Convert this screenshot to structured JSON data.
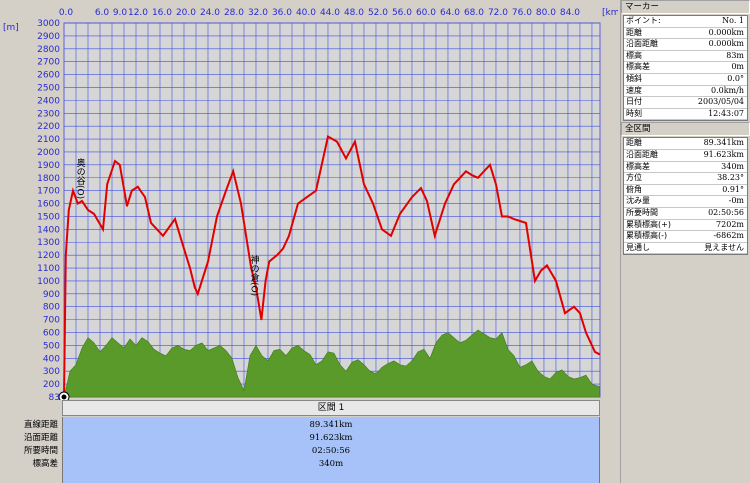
{
  "chart": {
    "y_unit": "[m]",
    "x_unit": "[km]",
    "y_ticks": [
      "3000",
      "2900",
      "2800",
      "2700",
      "2600",
      "2500",
      "2400",
      "2300",
      "2200",
      "2100",
      "2000",
      "1900",
      "1800",
      "1700",
      "1600",
      "1500",
      "1400",
      "1300",
      "1200",
      "1100",
      "1000",
      "900",
      "800",
      "700",
      "600",
      "500",
      "400",
      "300",
      "200",
      "83"
    ],
    "x_ticks": [
      "0.0",
      "6.0",
      "9.0",
      "12.0",
      "16.0",
      "20.0",
      "24.0",
      "28.0",
      "32.0",
      "36.0",
      "40.0",
      "44.0",
      "48.0",
      "52.0",
      "56.0",
      "60.0",
      "64.0",
      "68.0",
      "72.0",
      "76.0",
      "80.0",
      "84.0"
    ],
    "annotations": [
      "奥の谷(O)",
      "神の倉(O)"
    ],
    "colors": {
      "elevation_line": "#e00000",
      "slope_fill": "#5a9a2a",
      "grid": "#4050e0",
      "plot_bg": "#d6d6d6"
    }
  },
  "chart_data": {
    "type": "line",
    "xlabel": "[km]",
    "ylabel": "[m]",
    "xlim": [
      0,
      89.341
    ],
    "ylim": [
      83,
      3000
    ],
    "series": [
      {
        "x": [
          0,
          0.3,
          0.8,
          1.5,
          2.3,
          3.0,
          4.0,
          5.0,
          6.5,
          7.2,
          8.5,
          9.3,
          10.5,
          11.3,
          12.3,
          13.5,
          14.5,
          16.5,
          18.5,
          20.0,
          21.0,
          21.8,
          22.3,
          24.0,
          25.5,
          27.0,
          28.2,
          29.5,
          31.2,
          32.0,
          32.9,
          33.6,
          34.2,
          35.5,
          36.5,
          37.5,
          39.0,
          40.5,
          42.0,
          44.0,
          45.5,
          47.0,
          48.5,
          50.0,
          51.5,
          53.0,
          54.5,
          56.0,
          58.0,
          59.5,
          60.5,
          61.8,
          63.5,
          65.0,
          66.0,
          67.0,
          68.0,
          69.0,
          70.0,
          71.0,
          72.0,
          73.0,
          74.0,
          75.0,
          77.0,
          78.5,
          79.5,
          80.5,
          82.0,
          83.5,
          85.0,
          86.0,
          87.0,
          88.0,
          88.5,
          89.3
        ],
        "values": [
          83,
          1200,
          1550,
          1700,
          1600,
          1620,
          1550,
          1520,
          1400,
          1750,
          1930,
          1900,
          1580,
          1700,
          1730,
          1650,
          1450,
          1350,
          1480,
          1250,
          1100,
          950,
          900,
          1150,
          1500,
          1700,
          1850,
          1600,
          1100,
          950,
          700,
          1000,
          1150,
          1200,
          1250,
          1350,
          1600,
          1650,
          1700,
          2120,
          2080,
          1950,
          2080,
          1750,
          1600,
          1400,
          1350,
          1520,
          1650,
          1720,
          1620,
          1350,
          1600,
          1750,
          1800,
          1850,
          1820,
          1800,
          1850,
          1900,
          1750,
          1500,
          1500,
          1480,
          1450,
          1000,
          1080,
          1120,
          1000,
          750,
          800,
          750,
          600,
          500,
          450,
          430
        ]
      },
      {
        "x": [
          0,
          1.0,
          2.0,
          3.0,
          4.0,
          5.0,
          6.0,
          7.0,
          8.0,
          9.0,
          10.0,
          11.0,
          12.0,
          13.0,
          14.0,
          15.0,
          16.0,
          17.0,
          18.0,
          19.0,
          20.0,
          21.0,
          22.0,
          23.0,
          24.0,
          25.0,
          26.0,
          27.0,
          28.0,
          29.0,
          30.0,
          31.0,
          32.0,
          33.0,
          34.0,
          35.0,
          36.0,
          37.0,
          38.0,
          39.0,
          40.0,
          41.0,
          42.0,
          43.0,
          44.0,
          45.0,
          46.0,
          47.0,
          48.0,
          49.0,
          50.0,
          51.0,
          52.0,
          53.0,
          54.0,
          55.0,
          56.0,
          57.0,
          58.0,
          59.0,
          60.0,
          61.0,
          62.0,
          63.0,
          64.0,
          65.0,
          66.0,
          67.0,
          68.0,
          69.0,
          70.0,
          71.0,
          72.0,
          73.0,
          74.0,
          75.0,
          76.0,
          77.0,
          78.0,
          79.0,
          80.0,
          81.0,
          82.0,
          83.0,
          84.0,
          85.0,
          86.0,
          87.0,
          88.0,
          89.3
        ],
        "values": [
          83,
          300,
          350,
          480,
          560,
          520,
          450,
          500,
          560,
          520,
          480,
          550,
          500,
          560,
          530,
          470,
          440,
          420,
          480,
          500,
          470,
          460,
          500,
          520,
          460,
          480,
          500,
          460,
          400,
          250,
          150,
          420,
          500,
          420,
          380,
          460,
          470,
          420,
          480,
          500,
          460,
          430,
          350,
          380,
          450,
          440,
          350,
          300,
          370,
          390,
          350,
          300,
          280,
          330,
          360,
          380,
          350,
          340,
          380,
          450,
          470,
          400,
          520,
          580,
          600,
          560,
          520,
          540,
          580,
          620,
          590,
          560,
          550,
          600,
          470,
          420,
          330,
          350,
          380,
          300,
          260,
          240,
          290,
          310,
          260,
          240,
          250,
          270,
          200,
          180
        ]
      }
    ]
  },
  "section_bar": {
    "label": "区間 1"
  },
  "summary": {
    "labels": [
      "直線距離",
      "沿面距離",
      "所要時間",
      "標高差"
    ],
    "values": [
      "89.341km",
      "91.623km",
      "02:50:56",
      "340m"
    ]
  },
  "marker_panel": {
    "title": "マーカー",
    "rows": [
      {
        "k": "ポイント:",
        "v": "No. 1"
      },
      {
        "k": "距離",
        "v": "0.000km"
      },
      {
        "k": "沿面距離",
        "v": "0.000km"
      },
      {
        "k": "標高",
        "v": "83m"
      },
      {
        "k": "標高差",
        "v": "0m"
      },
      {
        "k": "傾斜",
        "v": "0.0°"
      },
      {
        "k": "速度",
        "v": "0.0km/h"
      },
      {
        "k": "日付",
        "v": "2003/05/04"
      },
      {
        "k": "時刻",
        "v": "12:43:07"
      }
    ]
  },
  "all_section_panel": {
    "title": "全区間",
    "rows": [
      {
        "k": "距離",
        "v": "89.341km"
      },
      {
        "k": "沿面距離",
        "v": "91.623km"
      },
      {
        "k": "標高差",
        "v": "340m"
      },
      {
        "k": "方位",
        "v": "38.23°"
      },
      {
        "k": "俯角",
        "v": "0.91°"
      },
      {
        "k": "沈み量",
        "v": "-0m"
      },
      {
        "k": "所要時間",
        "v": "02:50:56"
      },
      {
        "k": "累積標高(+)",
        "v": "7202m"
      },
      {
        "k": "累積標高(-)",
        "v": "-6862m"
      },
      {
        "k": "見通し",
        "v": "見えません"
      }
    ]
  }
}
